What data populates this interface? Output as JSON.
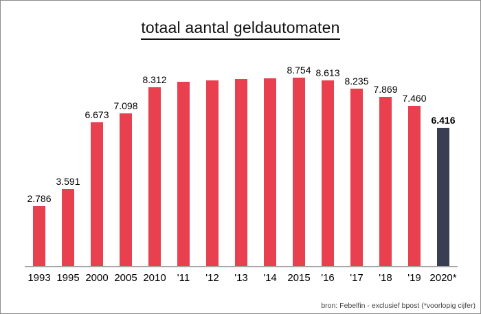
{
  "chart_data": {
    "type": "bar",
    "title": "totaal aantal geldautomaten",
    "source_note": "bron: Febelfin - exclusief bpost (*voorlopig cijfer)",
    "categories": [
      "1993",
      "1995",
      "2000",
      "2005",
      "2010",
      "'11",
      "'12",
      "'13",
      "'14",
      "2015",
      "'16",
      "'17",
      "'18",
      "'19",
      "2020*"
    ],
    "values": [
      2786,
      3591,
      6673,
      7098,
      8312,
      8570,
      8630,
      8690,
      8725,
      8754,
      8613,
      8235,
      7869,
      7460,
      6416
    ],
    "bar_labels": [
      "2.786",
      "3.591",
      "6.673",
      "7.098",
      "8.312",
      "",
      "",
      "",
      "",
      "8.754",
      "8.613",
      "8.235",
      "7.869",
      "7.460",
      "6.416"
    ],
    "highlight_index": 14,
    "bar_color": "#e8404f",
    "highlight_color": "#3a3e52",
    "axis_color": "#a6a6a6",
    "ylim": [
      0,
      9000
    ],
    "grid": false,
    "legend_position": "none",
    "note": "bars '11-'14 carry no printed data labels; their values are estimated from bar heights"
  }
}
